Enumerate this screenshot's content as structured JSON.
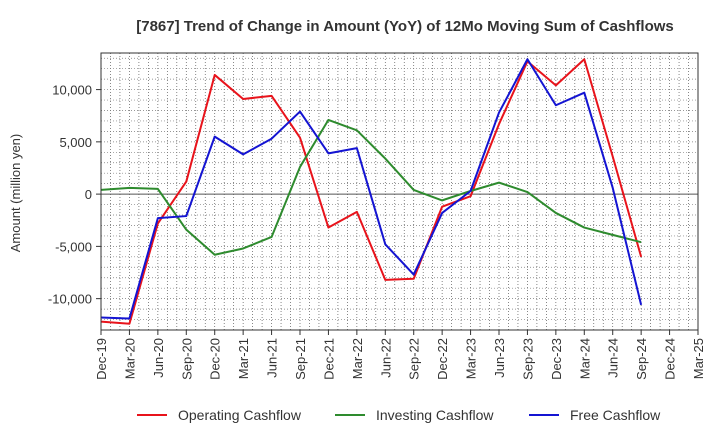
{
  "chart_data": {
    "type": "line",
    "title": "[7867]  Trend of Change in Amount (YoY) of 12Mo Moving Sum of Cashflows",
    "xlabel": "",
    "ylabel": "Amount (million yen)",
    "ylim": [
      -13000,
      13500
    ],
    "yticks": [
      10000,
      5000,
      0,
      -5000,
      -10000
    ],
    "ytick_labels": [
      "10,000",
      "5,000",
      "0",
      "-5,000",
      "-10,000"
    ],
    "grid": true,
    "legend_position": "bottom",
    "categories": [
      "Dec-19",
      "Mar-20",
      "Jun-20",
      "Sep-20",
      "Dec-20",
      "Mar-21",
      "Jun-21",
      "Sep-21",
      "Dec-21",
      "Mar-22",
      "Jun-22",
      "Sep-22",
      "Dec-22",
      "Mar-23",
      "Jun-23",
      "Sep-23",
      "Dec-23",
      "Mar-24",
      "Jun-24",
      "Sep-24",
      "Dec-24",
      "Mar-25"
    ],
    "series": [
      {
        "name": "Operating Cashflow",
        "color": "#e8131b",
        "values": [
          -12200,
          -12400,
          -2800,
          1200,
          11400,
          9100,
          9400,
          5400,
          -3200,
          -1700,
          -8200,
          -8100,
          -1200,
          -200,
          6700,
          12700,
          10400,
          12900,
          3600,
          -6000,
          null,
          null
        ]
      },
      {
        "name": "Investing Cashflow",
        "color": "#2e8b2e",
        "values": [
          400,
          600,
          500,
          -3400,
          -5800,
          -5200,
          -4100,
          2600,
          7100,
          6100,
          3400,
          400,
          -600,
          300,
          1100,
          200,
          -1800,
          -3200,
          -3900,
          -4600,
          null,
          null
        ]
      },
      {
        "name": "Free Cashflow",
        "color": "#1414d2",
        "values": [
          -11800,
          -11900,
          -2300,
          -2100,
          5500,
          3800,
          5300,
          7900,
          3900,
          4400,
          -4800,
          -7700,
          -1800,
          300,
          7800,
          12900,
          8500,
          9700,
          600,
          -10600,
          null,
          null
        ]
      }
    ]
  }
}
